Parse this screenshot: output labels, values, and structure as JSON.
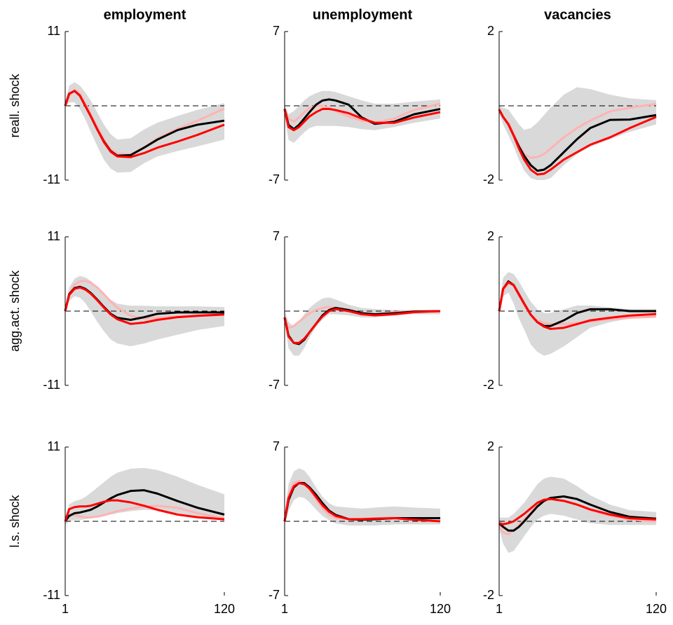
{
  "chart_data": [
    {
      "type": "line",
      "title": "employment",
      "ylabel": "reall. shock",
      "x": [
        1,
        4,
        8,
        12,
        16,
        20,
        25,
        30,
        35,
        40,
        50,
        60,
        70,
        85,
        100,
        120
      ],
      "xlim": [
        1,
        120
      ],
      "ylim": [
        -11,
        11
      ],
      "yticks": [
        -11,
        11
      ],
      "hline": 0,
      "band": {
        "color": "#d9d9d9",
        "lower": [
          0,
          0.5,
          0.5,
          -0.5,
          -2,
          -3.8,
          -6,
          -8,
          -9.3,
          -9.9,
          -9.8,
          -8.5,
          -7.5,
          -6.7,
          -6,
          -5
        ],
        "upper": [
          0.5,
          3,
          3.5,
          3,
          2,
          0.8,
          -1,
          -2.8,
          -4.2,
          -5,
          -4.8,
          -3.5,
          -2.5,
          -1.5,
          -0.6,
          0.4
        ]
      },
      "series": [
        {
          "color": "#ffb3b3",
          "values": [
            0,
            1.5,
            2.4,
            1.8,
            0.4,
            -1.2,
            -3.2,
            -5,
            -6.4,
            -7.1,
            -7.2,
            -6.2,
            -4.8,
            -3.4,
            -2.2,
            -0.4
          ]
        },
        {
          "color": "#000000",
          "values": [
            0,
            1.8,
            2.2,
            1.5,
            0,
            -1.5,
            -3.5,
            -5.3,
            -6.7,
            -7.4,
            -7.3,
            -6.2,
            -5,
            -3.6,
            -2.8,
            -2.2
          ]
        },
        {
          "color": "#ff0000",
          "values": [
            0,
            1.8,
            2.2,
            1.5,
            0,
            -1.5,
            -3.5,
            -5.4,
            -6.8,
            -7.5,
            -7.6,
            -7,
            -6.2,
            -5.3,
            -4.3,
            -2.8
          ]
        }
      ]
    },
    {
      "type": "line",
      "title": "unemployment",
      "x": [
        1,
        4,
        8,
        12,
        16,
        20,
        25,
        30,
        35,
        40,
        50,
        60,
        70,
        85,
        100,
        120
      ],
      "xlim": [
        1,
        120
      ],
      "ylim": [
        -7,
        7
      ],
      "yticks": [
        -7,
        7
      ],
      "hline": 0,
      "band": {
        "color": "#d9d9d9",
        "lower": [
          -1,
          -3.2,
          -3.5,
          -3,
          -2.5,
          -2.1,
          -1.9,
          -1.9,
          -1.9,
          -1.9,
          -2,
          -2.2,
          -2.3,
          -2,
          -1.6,
          -1.2
        ],
        "upper": [
          0,
          -0.8,
          -0.5,
          0,
          0.5,
          0.9,
          1.2,
          1.4,
          1.4,
          1.3,
          0.9,
          0.5,
          0.2,
          0.2,
          0.4,
          0.6
        ]
      },
      "series": [
        {
          "color": "#ffb3b3",
          "values": [
            -0.3,
            -1.2,
            -1.5,
            -1.1,
            -0.6,
            -0.2,
            0,
            0,
            -0.2,
            -0.5,
            -1,
            -1.4,
            -1.6,
            -1.2,
            -0.4,
            0.2
          ]
        },
        {
          "color": "#000000",
          "values": [
            -0.3,
            -1.8,
            -2.2,
            -1.8,
            -1.2,
            -0.6,
            0.1,
            0.5,
            0.6,
            0.5,
            0.1,
            -1.1,
            -1.7,
            -1.5,
            -0.8,
            -0.3
          ]
        },
        {
          "color": "#ff0000",
          "values": [
            -0.3,
            -2,
            -2.3,
            -2,
            -1.5,
            -1,
            -0.6,
            -0.3,
            -0.3,
            -0.4,
            -0.7,
            -1.2,
            -1.6,
            -1.6,
            -1.1,
            -0.6
          ]
        }
      ]
    },
    {
      "type": "line",
      "title": "vacancies",
      "x": [
        1,
        4,
        8,
        12,
        16,
        20,
        25,
        30,
        35,
        40,
        50,
        60,
        70,
        85,
        100,
        120
      ],
      "xlim": [
        1,
        120
      ],
      "ylim": [
        -2,
        2
      ],
      "yticks": [
        -2,
        2
      ],
      "hline": 0,
      "band": {
        "color": "#d9d9d9",
        "lower": [
          -0.2,
          -0.5,
          -0.8,
          -1.1,
          -1.45,
          -1.75,
          -1.95,
          -2,
          -2,
          -1.95,
          -1.6,
          -1.3,
          -1.1,
          -0.9,
          -0.7,
          -0.5
        ],
        "upper": [
          0,
          -0.05,
          -0.1,
          -0.3,
          -0.5,
          -0.65,
          -0.6,
          -0.45,
          -0.25,
          -0.05,
          0.3,
          0.5,
          0.45,
          0.3,
          0.2,
          0.15
        ]
      },
      "series": [
        {
          "color": "#ffb3b3",
          "values": [
            -0.1,
            -0.3,
            -0.45,
            -0.75,
            -1.05,
            -1.3,
            -1.4,
            -1.38,
            -1.3,
            -1.15,
            -0.85,
            -0.6,
            -0.4,
            -0.15,
            -0.05,
            0.05
          ]
        },
        {
          "color": "#000000",
          "values": [
            -0.1,
            -0.3,
            -0.5,
            -0.8,
            -1.1,
            -1.35,
            -1.6,
            -1.75,
            -1.72,
            -1.6,
            -1.25,
            -0.9,
            -0.6,
            -0.38,
            -0.37,
            -0.25
          ]
        },
        {
          "color": "#ff0000",
          "values": [
            -0.1,
            -0.3,
            -0.5,
            -0.8,
            -1.15,
            -1.45,
            -1.72,
            -1.85,
            -1.83,
            -1.72,
            -1.45,
            -1.25,
            -1.05,
            -0.85,
            -0.6,
            -0.3
          ]
        }
      ]
    },
    {
      "type": "line",
      "ylabel": "agg.act. shock",
      "x": [
        1,
        4,
        8,
        12,
        16,
        20,
        25,
        30,
        35,
        40,
        50,
        60,
        70,
        85,
        100,
        120
      ],
      "xlim": [
        1,
        120
      ],
      "ylim": [
        -11,
        11
      ],
      "yticks": [
        -11,
        11
      ],
      "hline": 0,
      "band": {
        "color": "#d9d9d9",
        "lower": [
          0,
          1.5,
          2.2,
          2,
          1.2,
          0,
          -1.6,
          -3,
          -4.2,
          -4.8,
          -5.2,
          -4.8,
          -4.2,
          -3.5,
          -2.8,
          -2.2
        ],
        "upper": [
          0.3,
          3.5,
          4.8,
          5.2,
          5,
          4.5,
          3.6,
          2.6,
          1.7,
          1.1,
          0.8,
          0.8,
          0.7,
          0.7,
          0.7,
          0.6
        ]
      },
      "series": [
        {
          "color": "#ffb3b3",
          "values": [
            0,
            2.6,
            3.9,
            4.4,
            4.5,
            4.2,
            3.5,
            2.5,
            1.4,
            0.5,
            -0.7,
            -1.1,
            -1,
            -0.8,
            -0.6,
            -0.4
          ]
        },
        {
          "color": "#000000",
          "values": [
            0,
            2.5,
            3.4,
            3.6,
            3.3,
            2.7,
            1.7,
            0.6,
            -0.4,
            -1,
            -1.3,
            -0.9,
            -0.4,
            -0.2,
            -0.2,
            -0.2
          ]
        },
        {
          "color": "#ff0000",
          "values": [
            0,
            2.4,
            3.3,
            3.5,
            3.2,
            2.6,
            1.6,
            0.5,
            -0.5,
            -1.2,
            -1.9,
            -1.7,
            -1.3,
            -0.9,
            -0.7,
            -0.5
          ]
        }
      ]
    },
    {
      "type": "line",
      "x": [
        1,
        4,
        8,
        12,
        16,
        20,
        25,
        30,
        35,
        40,
        50,
        60,
        70,
        85,
        100,
        120
      ],
      "xlim": [
        1,
        120
      ],
      "ylim": [
        -7,
        7
      ],
      "yticks": [
        -7,
        7
      ],
      "hline": 0,
      "band": {
        "color": "#d9d9d9",
        "lower": [
          -1,
          -3.5,
          -4.2,
          -4.2,
          -3.5,
          -2.5,
          -1.5,
          -0.8,
          -0.3,
          -0.3,
          -0.4,
          -0.6,
          -0.6,
          -0.4,
          -0.3,
          -0.3
        ],
        "upper": [
          0,
          -1,
          -1.5,
          -1,
          -0.3,
          0.3,
          0.8,
          1.2,
          1.3,
          1.1,
          0.6,
          0.3,
          0.2,
          0.1,
          0.1,
          0.1
        ]
      },
      "series": [
        {
          "color": "#ffb3b3",
          "values": [
            -0.6,
            -1.6,
            -1.4,
            -1,
            -0.6,
            -0.2,
            0.1,
            0.3,
            0.4,
            0.3,
            0,
            -0.3,
            -0.3,
            -0.1,
            0,
            0
          ]
        },
        {
          "color": "#000000",
          "values": [
            -0.6,
            -2.3,
            -3,
            -3.1,
            -2.7,
            -2,
            -1.2,
            -0.4,
            0.1,
            0.3,
            0.1,
            -0.2,
            -0.3,
            -0.2,
            -0.05,
            0
          ]
        },
        {
          "color": "#ff0000",
          "values": [
            -0.6,
            -2.4,
            -3,
            -3,
            -2.6,
            -2,
            -1.2,
            -0.5,
            0,
            0.2,
            0,
            -0.3,
            -0.4,
            -0.3,
            -0.1,
            0
          ]
        }
      ]
    },
    {
      "type": "line",
      "x": [
        1,
        4,
        8,
        12,
        16,
        20,
        25,
        30,
        35,
        40,
        50,
        60,
        70,
        85,
        100,
        120
      ],
      "xlim": [
        1,
        120
      ],
      "ylim": [
        -2,
        2
      ],
      "yticks": [
        -2,
        2
      ],
      "hline": 0,
      "band": {
        "color": "#d9d9d9",
        "lower": [
          0,
          0.4,
          0.5,
          0.2,
          -0.2,
          -0.5,
          -0.9,
          -1.1,
          -1.2,
          -1.15,
          -0.95,
          -0.7,
          -0.45,
          -0.3,
          -0.2,
          -0.15
        ],
        "upper": [
          0.1,
          0.9,
          1.05,
          1,
          0.8,
          0.55,
          0.25,
          0.05,
          -0.05,
          -0.05,
          0.05,
          0.15,
          0.15,
          0.1,
          0.05,
          0.05
        ]
      },
      "series": [
        {
          "color": "#ffb3b3",
          "values": [
            0,
            0.55,
            0.75,
            0.68,
            0.42,
            0.15,
            -0.1,
            -0.25,
            -0.32,
            -0.35,
            -0.35,
            -0.32,
            -0.28,
            -0.22,
            -0.18,
            -0.15
          ]
        },
        {
          "color": "#000000",
          "values": [
            0,
            0.6,
            0.8,
            0.7,
            0.45,
            0.2,
            -0.1,
            -0.3,
            -0.4,
            -0.4,
            -0.25,
            -0.05,
            0.05,
            0.05,
            0,
            0
          ]
        },
        {
          "color": "#ff0000",
          "values": [
            0,
            0.6,
            0.78,
            0.7,
            0.45,
            0.2,
            -0.1,
            -0.3,
            -0.42,
            -0.48,
            -0.45,
            -0.35,
            -0.25,
            -0.18,
            -0.12,
            -0.08
          ]
        }
      ]
    },
    {
      "type": "line",
      "ylabel": "l.s. shock",
      "x": [
        1,
        4,
        8,
        12,
        16,
        20,
        25,
        30,
        35,
        40,
        50,
        60,
        70,
        85,
        100,
        120
      ],
      "xlim": [
        1,
        120
      ],
      "xticks": [
        1,
        120
      ],
      "ylim": [
        -11,
        11
      ],
      "yticks": [
        -11,
        11
      ],
      "hline": 0,
      "band": {
        "color": "#d9d9d9",
        "lower": [
          -0.5,
          0,
          0.2,
          0.2,
          0.3,
          0.4,
          0.6,
          0.8,
          1,
          1.2,
          1.5,
          1.7,
          1.6,
          1.2,
          0.6,
          0.1
        ],
        "upper": [
          0.5,
          2.5,
          3,
          3.2,
          3.6,
          4.2,
          5,
          5.8,
          6.6,
          7.2,
          7.8,
          7.9,
          7.6,
          6.6,
          5.4,
          4
        ]
      },
      "series": [
        {
          "color": "#ffb3b3",
          "values": [
            0,
            1,
            0.9,
            0.7,
            0.6,
            0.6,
            0.7,
            0.9,
            1.2,
            1.5,
            1.9,
            2.2,
            2.3,
            2,
            1.2,
            0.4
          ]
        },
        {
          "color": "#000000",
          "values": [
            0,
            0.8,
            1.2,
            1.3,
            1.5,
            1.7,
            2.2,
            2.8,
            3.4,
            3.9,
            4.5,
            4.6,
            4.1,
            3,
            2,
            1
          ]
        },
        {
          "color": "#ff0000",
          "values": [
            0,
            1.8,
            2.1,
            2.2,
            2.2,
            2.3,
            2.6,
            2.9,
            3.1,
            3.1,
            2.8,
            2.3,
            1.7,
            1,
            0.6,
            0.3
          ]
        }
      ]
    },
    {
      "type": "line",
      "x": [
        1,
        4,
        8,
        12,
        16,
        20,
        25,
        30,
        35,
        40,
        50,
        60,
        70,
        85,
        100,
        120
      ],
      "xlim": [
        1,
        120
      ],
      "xticks": [
        1,
        120
      ],
      "ylim": [
        -7,
        7
      ],
      "yticks": [
        -7,
        7
      ],
      "hline": 0,
      "band": {
        "color": "#d9d9d9",
        "lower": [
          -0.3,
          1,
          2,
          2.3,
          2.2,
          1.8,
          1.1,
          0.5,
          0.1,
          -0.2,
          -0.4,
          -0.4,
          -0.4,
          -0.3,
          -0.3,
          -0.3
        ],
        "upper": [
          0.5,
          3.5,
          4.7,
          5,
          4.8,
          4.2,
          3.2,
          2.3,
          1.7,
          1.4,
          1.3,
          1.2,
          1.3,
          1.4,
          1.3,
          1.2
        ]
      },
      "series": [
        {
          "color": "#ffb3b3",
          "values": [
            0,
            2.5,
            3.6,
            3.8,
            3.6,
            3,
            2.1,
            1.2,
            0.6,
            0.3,
            0.2,
            0.25,
            0.3,
            0.35,
            0.2,
            0
          ]
        },
        {
          "color": "#000000",
          "values": [
            0,
            2,
            3.2,
            3.6,
            3.6,
            3.2,
            2.5,
            1.7,
            1,
            0.6,
            0.2,
            0.15,
            0.2,
            0.3,
            0.3,
            0.3
          ]
        },
        {
          "color": "#ff0000",
          "values": [
            0,
            2.2,
            3.3,
            3.6,
            3.5,
            3.1,
            2.3,
            1.5,
            0.9,
            0.5,
            0.2,
            0.2,
            0.25,
            0.3,
            0.15,
            0
          ]
        }
      ]
    },
    {
      "type": "line",
      "x": [
        1,
        4,
        8,
        12,
        16,
        20,
        25,
        30,
        35,
        40,
        50,
        60,
        70,
        85,
        100,
        120
      ],
      "xlim": [
        1,
        120
      ],
      "xticks": [
        1,
        120
      ],
      "ylim": [
        -2,
        2
      ],
      "yticks": [
        -2,
        2
      ],
      "hline": 0,
      "band": {
        "color": "#d9d9d9",
        "lower": [
          -0.2,
          -0.6,
          -0.85,
          -0.8,
          -0.6,
          -0.4,
          -0.15,
          0.05,
          0.15,
          0.2,
          0.15,
          0.05,
          -0.05,
          -0.1,
          -0.1,
          -0.1
        ],
        "upper": [
          0.1,
          0.1,
          0.1,
          0.2,
          0.35,
          0.5,
          0.75,
          1,
          1.15,
          1.2,
          1.15,
          0.95,
          0.7,
          0.45,
          0.3,
          0.25
        ]
      },
      "series": [
        {
          "color": "#ffb3b3",
          "values": [
            -0.1,
            -0.3,
            -0.35,
            -0.25,
            -0.1,
            0.05,
            0.25,
            0.45,
            0.55,
            0.6,
            0.55,
            0.45,
            0.3,
            0.15,
            0.05,
            0
          ]
        },
        {
          "color": "#000000",
          "values": [
            -0.05,
            -0.15,
            -0.25,
            -0.25,
            -0.15,
            0,
            0.2,
            0.4,
            0.55,
            0.63,
            0.67,
            0.6,
            0.45,
            0.25,
            0.12,
            0.07
          ]
        },
        {
          "color": "#ff0000",
          "values": [
            -0.05,
            -0.08,
            -0.05,
            0,
            0.1,
            0.2,
            0.35,
            0.5,
            0.58,
            0.6,
            0.55,
            0.45,
            0.32,
            0.18,
            0.08,
            0.05
          ]
        }
      ]
    }
  ]
}
